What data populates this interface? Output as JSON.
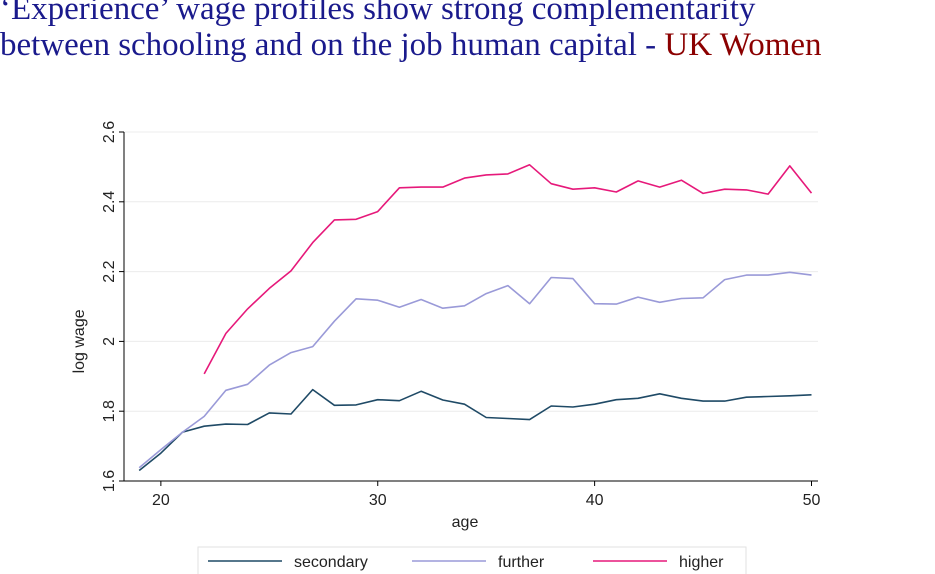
{
  "title": {
    "line1": "‘Experience’ wage profiles show strong complementarity",
    "line2": "between schooling and on the job human capital -",
    "highlight": "UK Women"
  },
  "colors": {
    "title": "#1a1a8c",
    "highlight": "#8b0000",
    "secondary": "#1f4a66",
    "further": "#9a9ad8",
    "higher": "#e6197a"
  },
  "chart_data": {
    "type": "line",
    "xlabel": "age",
    "ylabel": "log wage",
    "xlim": [
      18.3,
      50.3
    ],
    "ylim": [
      1.6,
      2.6
    ],
    "xticks": [
      20,
      30,
      40,
      50
    ],
    "xtick_labels": [
      "20",
      "30",
      "40",
      "50"
    ],
    "yticks": [
      1.6,
      1.8,
      2,
      2.2,
      2.4,
      2.6
    ],
    "ytick_labels": [
      "1.6",
      "1.8",
      "2",
      "2.2",
      "2.4",
      "2.6"
    ],
    "grid": "horizontal",
    "legend_position": "bottom",
    "series": [
      {
        "name": "secondary",
        "color": "#1f4a66",
        "x": [
          19,
          20,
          21,
          22,
          23,
          24,
          25,
          26,
          27,
          28,
          29,
          30,
          31,
          32,
          33,
          34,
          35,
          36,
          37,
          38,
          39,
          40,
          41,
          42,
          43,
          44,
          45,
          46,
          47,
          48,
          49,
          50
        ],
        "y": [
          1.63,
          1.68,
          1.74,
          1.757,
          1.763,
          1.762,
          1.795,
          1.792,
          1.862,
          1.817,
          1.818,
          1.833,
          1.83,
          1.857,
          1.832,
          1.82,
          1.782,
          1.779,
          1.776,
          1.815,
          1.812,
          1.82,
          1.833,
          1.837,
          1.85,
          1.837,
          1.829,
          1.829,
          1.84,
          1.842,
          1.844,
          1.847
        ]
      },
      {
        "name": "further",
        "color": "#9a9ad8",
        "x": [
          19,
          20,
          21,
          22,
          23,
          24,
          25,
          26,
          27,
          28,
          29,
          30,
          31,
          32,
          33,
          34,
          35,
          36,
          37,
          38,
          39,
          40,
          41,
          42,
          43,
          44,
          45,
          46,
          47,
          48,
          49,
          50
        ],
        "y": [
          1.638,
          1.69,
          1.74,
          1.785,
          1.86,
          1.877,
          1.932,
          1.968,
          1.985,
          2.058,
          2.122,
          2.118,
          2.098,
          2.12,
          2.095,
          2.102,
          2.137,
          2.16,
          2.108,
          2.183,
          2.18,
          2.108,
          2.107,
          2.127,
          2.112,
          2.123,
          2.125,
          2.177,
          2.19,
          2.19,
          2.198,
          2.19
        ]
      },
      {
        "name": "higher",
        "color": "#e6197a",
        "x": [
          22,
          23,
          24,
          25,
          26,
          27,
          28,
          29,
          30,
          31,
          32,
          33,
          34,
          35,
          36,
          37,
          38,
          39,
          40,
          41,
          42,
          43,
          44,
          45,
          46,
          47,
          48,
          49,
          50
        ],
        "y": [
          1.907,
          2.023,
          2.093,
          2.152,
          2.202,
          2.283,
          2.348,
          2.35,
          2.372,
          2.44,
          2.442,
          2.442,
          2.468,
          2.477,
          2.48,
          2.506,
          2.452,
          2.436,
          2.44,
          2.428,
          2.46,
          2.442,
          2.462,
          2.424,
          2.436,
          2.434,
          2.422,
          2.503,
          2.425
        ]
      }
    ]
  }
}
